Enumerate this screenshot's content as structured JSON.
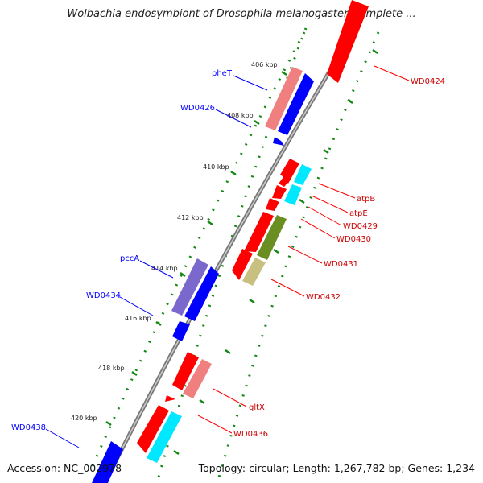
{
  "title": "Wolbachia endosymbiont of Drosophila melanogaster, complete ...",
  "accession": "Accession: NC_002978",
  "summary": "Topology: circular; Length: 1,267,782 bp; Genes: 1,234",
  "colors": {
    "forward": "#ff0000",
    "forward_light": "#f08080",
    "reverse": "#0000ff",
    "reverse_light": "#7b68cc",
    "cyan": "#00ffff",
    "olive": "#6b8e23",
    "olive_light": "#c8c080",
    "tick": "#118811",
    "backbone": "#888888"
  },
  "tick_labels": [
    "406 kbp",
    "408 kbp",
    "410 kbp",
    "412 kbp",
    "414 kbp",
    "416 kbp",
    "418 kbp",
    "420 kbp"
  ],
  "left_labels": [
    "pheT",
    "WD0426",
    "pccA",
    "WD0434",
    "WD0438"
  ],
  "right_labels": [
    "WD0424",
    "atpB",
    "atpE",
    "WD0429",
    "WD0430",
    "WD0431",
    "WD0432",
    "gltX",
    "WD0436"
  ]
}
